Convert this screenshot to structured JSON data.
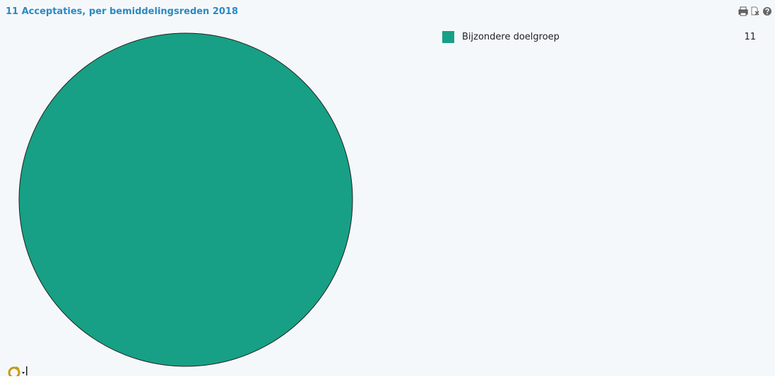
{
  "header": {
    "title": "11 Acceptaties, per bemiddelingsreden 2018"
  },
  "toolbar": {
    "icons": [
      "print-icon",
      "export-icon",
      "help-icon"
    ]
  },
  "colors": {
    "title": "#2a8ac1",
    "slice": "#17a085",
    "background": "#f5f8fb"
  },
  "chart_data": {
    "type": "pie",
    "title": "11 Acceptaties, per bemiddelingsreden 2018",
    "categories": [
      "Bijzondere doelgroep"
    ],
    "values": [
      11
    ],
    "colors": [
      "#17a085"
    ],
    "legend_position": "top-right"
  },
  "footer": {
    "icon": "refresh-options-icon"
  }
}
